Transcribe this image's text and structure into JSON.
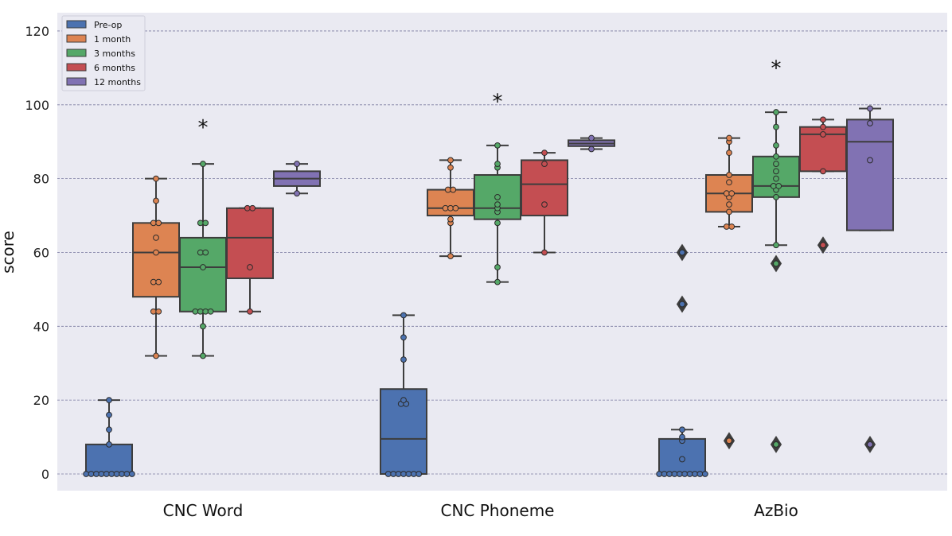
{
  "chart_data": {
    "type": "box",
    "ylabel": "score",
    "ylim": [
      -4.5,
      124
    ],
    "yticks": [
      0,
      20,
      40,
      60,
      80,
      100,
      120
    ],
    "grid": true,
    "legend_position": "top-left",
    "categories": [
      "CNC Word",
      "CNC Phoneme",
      "AzBio"
    ],
    "series": [
      {
        "name": "Pre-op",
        "color": "#4c72b0"
      },
      {
        "name": "1 month",
        "color": "#dd8452"
      },
      {
        "name": "3 months",
        "color": "#55a868"
      },
      {
        "name": "6 months",
        "color": "#c44e52"
      },
      {
        "name": "12 months",
        "color": "#8172b3"
      }
    ],
    "boxes": [
      {
        "category": "CNC Word",
        "series": "Pre-op",
        "q1": 0,
        "median": 0,
        "q3": 8,
        "whisker_low": 0,
        "whisker_high": 20,
        "points": [
          0,
          0,
          0,
          0,
          0,
          0,
          0,
          0,
          0,
          0,
          8,
          12,
          16,
          20
        ],
        "outliers": []
      },
      {
        "category": "CNC Word",
        "series": "1 month",
        "q1": 48,
        "median": 60,
        "q3": 68,
        "whisker_low": 32,
        "whisker_high": 80,
        "points": [
          32,
          44,
          44,
          52,
          52,
          60,
          64,
          68,
          68,
          74,
          80
        ],
        "outliers": []
      },
      {
        "category": "CNC Word",
        "series": "3 months",
        "q1": 44,
        "median": 56,
        "q3": 64,
        "whisker_low": 32,
        "whisker_high": 84,
        "points": [
          32,
          40,
          44,
          44,
          44,
          44,
          56,
          60,
          60,
          68,
          68,
          84
        ],
        "outliers": []
      },
      {
        "category": "CNC Word",
        "series": "6 months",
        "q1": 53,
        "median": 64,
        "q3": 72,
        "whisker_low": 44,
        "whisker_high": 72,
        "points": [
          44,
          56,
          72,
          72
        ],
        "outliers": []
      },
      {
        "category": "CNC Word",
        "series": "12 months",
        "q1": 78,
        "median": 80,
        "q3": 82,
        "whisker_low": 76,
        "whisker_high": 84,
        "points": [
          76,
          84
        ],
        "outliers": []
      },
      {
        "category": "CNC Phoneme",
        "series": "Pre-op",
        "q1": 0,
        "median": 9.5,
        "q3": 23,
        "whisker_low": 0,
        "whisker_high": 43,
        "points": [
          0,
          0,
          0,
          0,
          0,
          0,
          0,
          19,
          19,
          20,
          31,
          37,
          43
        ],
        "outliers": []
      },
      {
        "category": "CNC Phoneme",
        "series": "1 month",
        "q1": 70,
        "median": 72,
        "q3": 77,
        "whisker_low": 59,
        "whisker_high": 85,
        "points": [
          59,
          68,
          69,
          72,
          72,
          72,
          77,
          77,
          83,
          85
        ],
        "outliers": []
      },
      {
        "category": "CNC Phoneme",
        "series": "3 months",
        "q1": 69,
        "median": 72,
        "q3": 81,
        "whisker_low": 52,
        "whisker_high": 89,
        "points": [
          52,
          56,
          68,
          71,
          72,
          73,
          75,
          83,
          84,
          89
        ],
        "outliers": []
      },
      {
        "category": "CNC Phoneme",
        "series": "6 months",
        "q1": 70,
        "median": 78.5,
        "q3": 85,
        "whisker_low": 60,
        "whisker_high": 87,
        "points": [
          60,
          73,
          84,
          87
        ],
        "outliers": []
      },
      {
        "category": "CNC Phoneme",
        "series": "12 months",
        "q1": 88.8,
        "median": 89.5,
        "q3": 90.4,
        "whisker_low": 88,
        "whisker_high": 91,
        "points": [
          88,
          91
        ],
        "outliers": []
      },
      {
        "category": "AzBio",
        "series": "Pre-op",
        "q1": 0,
        "median": 0,
        "q3": 9.5,
        "whisker_low": 0,
        "whisker_high": 12,
        "points": [
          0,
          0,
          0,
          0,
          0,
          0,
          0,
          0,
          0,
          0,
          4,
          9,
          10,
          12
        ],
        "outliers": [
          46,
          60
        ]
      },
      {
        "category": "AzBio",
        "series": "1 month",
        "q1": 71,
        "median": 76,
        "q3": 81,
        "whisker_low": 67,
        "whisker_high": 91,
        "points": [
          67,
          67,
          71,
          73,
          75,
          76,
          76,
          79,
          81,
          87,
          90,
          91
        ],
        "outliers": [
          9
        ]
      },
      {
        "category": "AzBio",
        "series": "3 months",
        "q1": 75,
        "median": 78,
        "q3": 86,
        "whisker_low": 62,
        "whisker_high": 98,
        "points": [
          62,
          75,
          77,
          78,
          78,
          80,
          82,
          84,
          86,
          89,
          94,
          98
        ],
        "outliers": [
          8,
          57
        ]
      },
      {
        "category": "AzBio",
        "series": "6 months",
        "q1": 82,
        "median": 92,
        "q3": 94,
        "whisker_low": 82,
        "whisker_high": 96,
        "points": [
          82,
          92,
          94,
          96
        ],
        "outliers": [
          62
        ]
      },
      {
        "category": "AzBio",
        "series": "12 months",
        "q1": 66,
        "median": 90,
        "q3": 96,
        "whisker_low": 66,
        "whisker_high": 99,
        "points": [
          85,
          95,
          99
        ],
        "outliers": [
          8
        ]
      }
    ],
    "annotations": [
      {
        "category": "CNC Word",
        "series": "3 months",
        "text": "*",
        "y": 95
      },
      {
        "category": "CNC Phoneme",
        "series": "3 months",
        "text": "*",
        "y": 102
      },
      {
        "category": "AzBio",
        "series": "3 months",
        "text": "*",
        "y": 111
      }
    ]
  }
}
